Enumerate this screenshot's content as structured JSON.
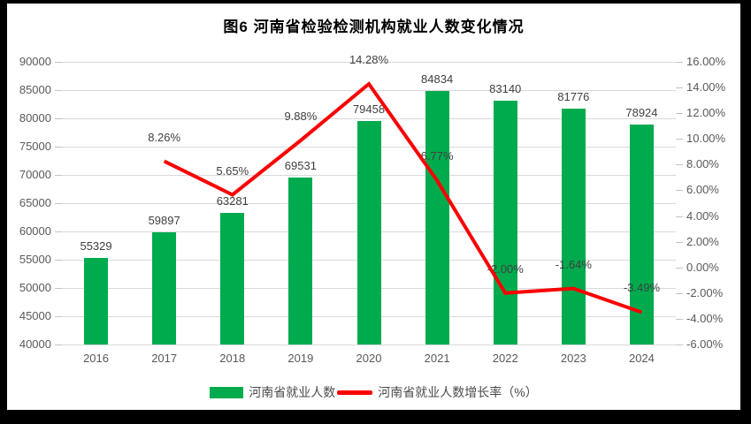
{
  "title": "图6  河南省检验检测机构就业人数变化情况",
  "legend": [
    {
      "type": "bar",
      "label": "河南省就业人数"
    },
    {
      "type": "line",
      "label": "河南省就业人数增长率（%）"
    }
  ],
  "colors": {
    "bar": "#00ab4e",
    "line": "#fb0000",
    "gridline": "#d9d9d9",
    "axis_text": "#595959",
    "data_label": "#3f3f3f",
    "title_text": "#000000",
    "frame": "#000000",
    "plot_bg": "#ffffff"
  },
  "chart_data": {
    "type": "bar",
    "subtype": "combo-bar-line",
    "title": "图6  河南省检验检测机构就业人数变化情况",
    "categories": [
      "2016",
      "2017",
      "2018",
      "2019",
      "2020",
      "2021",
      "2022",
      "2023",
      "2024"
    ],
    "series": [
      {
        "name": "河南省就业人数",
        "type": "bar",
        "axis": "left",
        "values": [
          55329,
          59897,
          63281,
          69531,
          79458,
          84834,
          83140,
          81776,
          78924
        ],
        "labels": [
          "55329",
          "59897",
          "63281",
          "69531",
          "79458",
          "84834",
          "83140",
          "81776",
          "78924"
        ]
      },
      {
        "name": "河南省就业人数增长率（%）",
        "type": "line",
        "axis": "right",
        "values": [
          null,
          8.26,
          5.65,
          9.88,
          14.28,
          6.77,
          -2.0,
          -1.64,
          -3.49
        ],
        "labels": [
          null,
          "8.26%",
          "5.65%",
          "9.88%",
          "14.28%",
          "6.77%",
          "-2.00%",
          "-1.64%",
          "-3.49%"
        ]
      }
    ],
    "left_axis": {
      "min": 40000,
      "max": 90000,
      "step": 5000,
      "ticks": [
        "90000",
        "85000",
        "80000",
        "75000",
        "70000",
        "65000",
        "60000",
        "55000",
        "50000",
        "45000",
        "40000"
      ]
    },
    "right_axis": {
      "min": -6,
      "max": 16,
      "step": 2,
      "ticks": [
        "16.00%",
        "14.00%",
        "12.00%",
        "10.00%",
        "8.00%",
        "6.00%",
        "4.00%",
        "2.00%",
        "0.00%",
        "-2.00%",
        "-4.00%",
        "-6.00%"
      ]
    },
    "grid": true,
    "legend_position": "bottom"
  }
}
